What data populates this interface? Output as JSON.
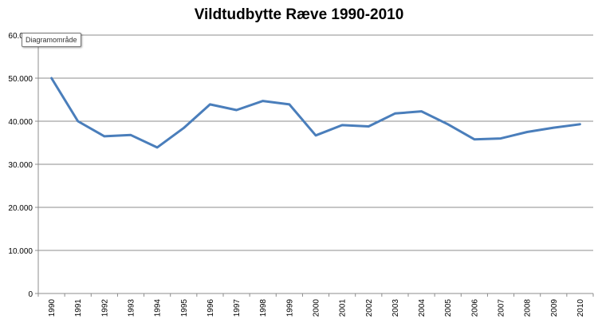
{
  "chart_data": {
    "type": "line",
    "title": "Vildtudbytte Ræve 1990-2010",
    "xlabel": "",
    "ylabel": "",
    "categories": [
      "1990",
      "1991",
      "1992",
      "1993",
      "1994",
      "1995",
      "1996",
      "1997",
      "1998",
      "1999",
      "2000",
      "2001",
      "2002",
      "2003",
      "2004",
      "2005",
      "2006",
      "2007",
      "2008",
      "2009",
      "2010"
    ],
    "y_tick_labels": [
      "0",
      "10.000",
      "20.000",
      "30.000",
      "40.000",
      "50.000",
      "60.000"
    ],
    "ylim": [
      0,
      60000
    ],
    "grid": true,
    "legend": "none",
    "series": [
      {
        "color": "#4a7ebb",
        "values": [
          50000,
          40000,
          36500,
          36800,
          33900,
          38400,
          43900,
          42600,
          44700,
          43900,
          36700,
          39100,
          38800,
          41800,
          42300,
          39300,
          35800,
          36000,
          37500,
          38500,
          39300
        ]
      }
    ]
  },
  "tooltip": {
    "label": "Diagramområde"
  }
}
